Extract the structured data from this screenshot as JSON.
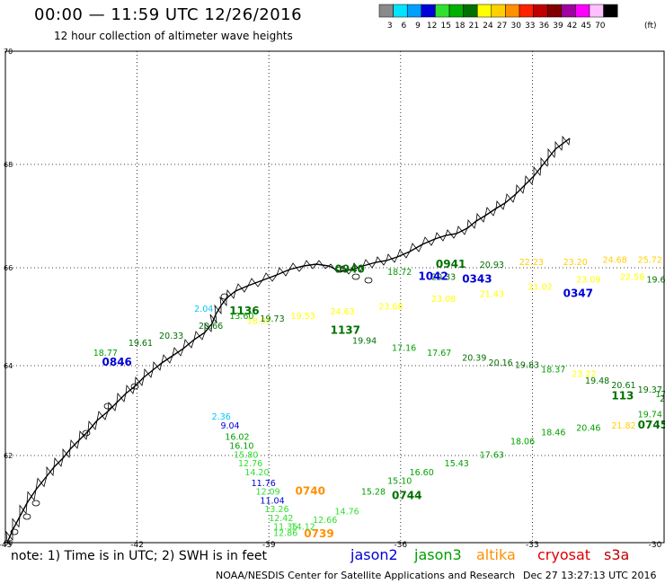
{
  "header": {
    "title": "00:00 — 11:59 UTC 12/26/2016",
    "subtitle": "12 hour collection of altimeter wave heights"
  },
  "colorbar": {
    "unit": "(ft)",
    "bins": [
      {
        "label": "3",
        "color": "#8a8a8a"
      },
      {
        "label": "6",
        "color": "#00e5ff"
      },
      {
        "label": "9",
        "color": "#00a0ff"
      },
      {
        "label": "12",
        "color": "#0000d8"
      },
      {
        "label": "15",
        "color": "#30e030"
      },
      {
        "label": "18",
        "color": "#00b000"
      },
      {
        "label": "21",
        "color": "#007000"
      },
      {
        "label": "24",
        "color": "#ffff00"
      },
      {
        "label": "27",
        "color": "#ffd000"
      },
      {
        "label": "30",
        "color": "#ff9000"
      },
      {
        "label": "33",
        "color": "#ff2000"
      },
      {
        "label": "36",
        "color": "#c00000"
      },
      {
        "label": "39",
        "color": "#800000"
      },
      {
        "label": "42",
        "color": "#a000a0"
      },
      {
        "label": "45",
        "color": "#ff00ff"
      },
      {
        "label": "70",
        "color": "#ffc0ff"
      },
      {
        "label": "",
        "color": "#000000"
      }
    ]
  },
  "map": {
    "lat_labels": [
      {
        "value": 70,
        "label": "70"
      },
      {
        "value": 68,
        "label": "68"
      },
      {
        "value": 66,
        "label": "66"
      },
      {
        "value": 64,
        "label": "64"
      },
      {
        "value": 62,
        "label": "62"
      },
      {
        "value": 60,
        "label": "60"
      }
    ],
    "lon_labels": [
      {
        "value": -45,
        "label": "-45"
      },
      {
        "value": -42,
        "label": "-42"
      },
      {
        "value": -39,
        "label": "-39"
      },
      {
        "value": -36,
        "label": "-36"
      },
      {
        "value": -33,
        "label": "-33"
      },
      {
        "value": -30,
        "label": "-30"
      }
    ],
    "coast_color": "#000000",
    "grid_color": "#000000"
  },
  "tracks": [
    {
      "name": "t1",
      "points": [
        {
          "lon": -40.3,
          "lat": 62.8,
          "text": "2.36",
          "color": "#00c8ff"
        },
        {
          "lon": -40.1,
          "lat": 62.6,
          "text": "9.04",
          "color": "#0000d8"
        },
        {
          "lon": -40.0,
          "lat": 62.35,
          "text": "16.02",
          "color": "#00a000"
        },
        {
          "lon": -39.9,
          "lat": 62.15,
          "text": "16.10",
          "color": "#00a000"
        },
        {
          "lon": -39.8,
          "lat": 61.95,
          "text": "15.80",
          "color": "#30e030"
        },
        {
          "lon": -39.7,
          "lat": 61.75,
          "text": "12.76",
          "color": "#30e030"
        },
        {
          "lon": -39.55,
          "lat": 61.55,
          "text": "14.20",
          "color": "#30e030"
        },
        {
          "lon": -39.4,
          "lat": 61.3,
          "text": "11.76",
          "color": "#0000d8"
        },
        {
          "lon": -39.3,
          "lat": 61.1,
          "text": "12.09",
          "color": "#30e030"
        },
        {
          "lon": -39.2,
          "lat": 60.9,
          "text": "11.04",
          "color": "#0000d8"
        },
        {
          "lon": -39.1,
          "lat": 60.7,
          "text": "13.26",
          "color": "#30e030"
        },
        {
          "lon": -39.0,
          "lat": 60.5,
          "text": "12.42",
          "color": "#30e030"
        },
        {
          "lon": -38.9,
          "lat": 60.3,
          "text": "11.35",
          "color": "#30e030"
        },
        {
          "lon": -38.9,
          "lat": 60.15,
          "text": "12.86",
          "color": "#30e030"
        }
      ]
    },
    {
      "name": "t2",
      "points": [
        {
          "lon": -38.4,
          "lat": 61.1,
          "text": "0740",
          "color": "#ff9000"
        },
        {
          "lon": -38.2,
          "lat": 60.12,
          "text": "0739",
          "color": "#ff9000"
        }
      ]
    },
    {
      "name": "t3",
      "points": [
        {
          "lon": -38.5,
          "lat": 60.3,
          "text": "14.12",
          "color": "#30e030"
        },
        {
          "lon": -38.0,
          "lat": 60.45,
          "text": "12.66",
          "color": "#30e030"
        },
        {
          "lon": -37.5,
          "lat": 60.65,
          "text": "14.76",
          "color": "#30e030"
        },
        {
          "lon": -36.9,
          "lat": 61.1,
          "text": "15.28",
          "color": "#00a000"
        },
        {
          "lon": -36.3,
          "lat": 61.35,
          "text": "15.10",
          "color": "#00a000"
        },
        {
          "lon": -35.8,
          "lat": 61.55,
          "text": "16.60",
          "color": "#00a000"
        },
        {
          "lon": -35.0,
          "lat": 61.75,
          "text": "15.43",
          "color": "#00a000"
        },
        {
          "lon": -34.2,
          "lat": 61.95,
          "text": "17.63",
          "color": "#00a000"
        },
        {
          "lon": -33.5,
          "lat": 62.25,
          "text": "18.06",
          "color": "#00a000"
        },
        {
          "lon": -32.8,
          "lat": 62.45,
          "text": "18.46",
          "color": "#00a000"
        },
        {
          "lon": -32.0,
          "lat": 62.55,
          "text": "20.46",
          "color": "#00a000"
        },
        {
          "lon": -31.2,
          "lat": 62.6,
          "text": "21.82",
          "color": "#ffd000"
        },
        {
          "lon": -30.6,
          "lat": 62.85,
          "text": "19.74",
          "color": "#00a000"
        }
      ]
    },
    {
      "name": "t4",
      "points": [
        {
          "lon": -36.2,
          "lat": 61.0,
          "text": "0744",
          "color": "#007000"
        },
        {
          "lon": -30.6,
          "lat": 62.6,
          "text": "0745",
          "color": "#007000"
        }
      ]
    },
    {
      "name": "t5",
      "points": [
        {
          "lon": -43.0,
          "lat": 64.2,
          "text": "18.77",
          "color": "#00a000"
        },
        {
          "lon": -42.2,
          "lat": 64.4,
          "text": "19.61",
          "color": "#007000"
        },
        {
          "lon": -41.5,
          "lat": 64.55,
          "text": "20.33",
          "color": "#007000"
        },
        {
          "lon": -40.6,
          "lat": 64.75,
          "text": "20.66",
          "color": "#007000"
        },
        {
          "lon": -39.5,
          "lat": 64.85,
          "text": "18.97",
          "color": "#ffff00"
        },
        {
          "lon": -38.5,
          "lat": 64.95,
          "text": "19.53",
          "color": "#ffff00"
        },
        {
          "lon": -37.6,
          "lat": 65.05,
          "text": "24.63",
          "color": "#ffff00"
        },
        {
          "lon": -36.5,
          "lat": 65.15,
          "text": "23.68",
          "color": "#ffff00"
        },
        {
          "lon": -35.3,
          "lat": 65.3,
          "text": "23.08",
          "color": "#ffff00"
        },
        {
          "lon": -34.2,
          "lat": 65.4,
          "text": "21.43",
          "color": "#ffff00"
        },
        {
          "lon": -33.1,
          "lat": 65.55,
          "text": "21.02",
          "color": "#ffff00"
        },
        {
          "lon": -32.0,
          "lat": 65.7,
          "text": "23.09",
          "color": "#ffff00"
        },
        {
          "lon": -31.0,
          "lat": 65.75,
          "text": "22.58",
          "color": "#ffff00"
        },
        {
          "lon": -30.4,
          "lat": 65.7,
          "text": "19.6",
          "color": "#007000"
        }
      ]
    },
    {
      "name": "t6",
      "points": [
        {
          "lon": -42.8,
          "lat": 64.0,
          "text": "0846",
          "color": "#0000d8"
        },
        {
          "lon": -39.9,
          "lat": 65.05,
          "text": "1136",
          "color": "#007000"
        },
        {
          "lon": -37.6,
          "lat": 64.65,
          "text": "1137",
          "color": "#007000"
        },
        {
          "lon": -32.3,
          "lat": 65.4,
          "text": "0347",
          "color": "#0000d8"
        }
      ]
    },
    {
      "name": "t7",
      "points": [
        {
          "lon": -40.7,
          "lat": 65.1,
          "text": "2.04",
          "color": "#00c8ff"
        },
        {
          "lon": -39.9,
          "lat": 64.95,
          "text": "13.60",
          "color": "#00a000"
        },
        {
          "lon": -39.2,
          "lat": 64.9,
          "text": "19.73",
          "color": "#007000"
        },
        {
          "lon": -37.1,
          "lat": 64.45,
          "text": "19.94",
          "color": "#007000"
        },
        {
          "lon": -36.2,
          "lat": 64.3,
          "text": "17.16",
          "color": "#00a000"
        },
        {
          "lon": -35.4,
          "lat": 64.2,
          "text": "17.67",
          "color": "#00a000"
        },
        {
          "lon": -34.6,
          "lat": 64.1,
          "text": "20.39",
          "color": "#007000"
        },
        {
          "lon": -34.0,
          "lat": 64.0,
          "text": "20.16",
          "color": "#007000"
        },
        {
          "lon": -33.4,
          "lat": 63.95,
          "text": "19.83",
          "color": "#007000"
        },
        {
          "lon": -32.8,
          "lat": 63.85,
          "text": "18.37",
          "color": "#00a000"
        },
        {
          "lon": -32.1,
          "lat": 63.75,
          "text": "23.22",
          "color": "#ffff00"
        },
        {
          "lon": -31.8,
          "lat": 63.6,
          "text": "19.48",
          "color": "#007000"
        },
        {
          "lon": -31.2,
          "lat": 63.5,
          "text": "20.61",
          "color": "#007000"
        },
        {
          "lon": -30.6,
          "lat": 63.4,
          "text": "19.37",
          "color": "#007000"
        },
        {
          "lon": -30.2,
          "lat": 63.3,
          "text": "17.87",
          "color": "#00a000"
        },
        {
          "lon": -30.1,
          "lat": 63.2,
          "text": "20.36",
          "color": "#007000"
        }
      ]
    },
    {
      "name": "t8",
      "points": [
        {
          "lon": -36.3,
          "lat": 65.85,
          "text": "18.72",
          "color": "#00a000"
        },
        {
          "lon": -35.3,
          "lat": 65.75,
          "text": "20.33",
          "color": "#007000"
        },
        {
          "lon": -34.2,
          "lat": 66.0,
          "text": "20.93",
          "color": "#007000"
        },
        {
          "lon": -33.3,
          "lat": 66.05,
          "text": "22.23",
          "color": "#ffd000"
        },
        {
          "lon": -32.3,
          "lat": 66.05,
          "text": "23.20",
          "color": "#ffd000"
        },
        {
          "lon": -31.4,
          "lat": 66.1,
          "text": "24.68",
          "color": "#ffd000"
        },
        {
          "lon": -30.6,
          "lat": 66.1,
          "text": "25.72",
          "color": "#ffd000"
        }
      ]
    },
    {
      "name": "t9",
      "points": [
        {
          "lon": -37.5,
          "lat": 65.9,
          "text": "0940",
          "color": "#007000"
        },
        {
          "lon": -35.2,
          "lat": 66.0,
          "text": "0941",
          "color": "#007000"
        },
        {
          "lon": -35.6,
          "lat": 65.75,
          "text": "1042",
          "color": "#0000d8"
        },
        {
          "lon": -34.6,
          "lat": 65.7,
          "text": "0343",
          "color": "#0000d8"
        },
        {
          "lon": -31.2,
          "lat": 63.25,
          "text": "113",
          "color": "#007000"
        }
      ]
    }
  ],
  "footer": {
    "note": "note: 1) Time is in UTC; 2) SWH is in feet",
    "legend": [
      {
        "label": "jason2",
        "color": "#0000d8"
      },
      {
        "label": "jason3",
        "color": "#00a000"
      },
      {
        "label": "altika",
        "color": "#ff9000"
      },
      {
        "label": "cryosat",
        "color": "#e00000"
      },
      {
        "label": "s3a",
        "color": "#c00000"
      }
    ],
    "credit": "NOAA/NESDIS Center for Satellite Applications and Research",
    "timestamp": "Dec 27 13:27:13 UTC 2016"
  }
}
